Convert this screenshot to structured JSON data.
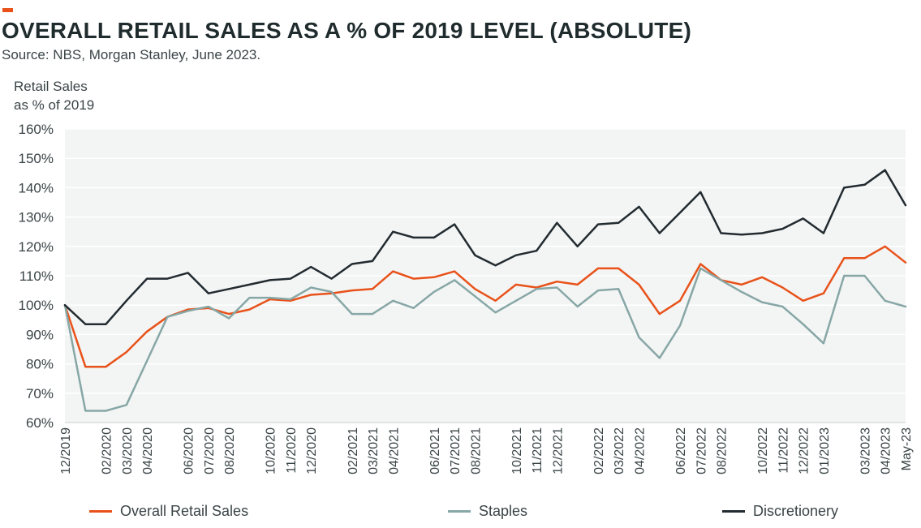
{
  "title": "OVERALL RETAIL SALES AS A % OF 2019 LEVEL (ABSOLUTE)",
  "subtitle": "Source: NBS, Morgan Stanley, June 2023.",
  "colors": {
    "accent": "#e8521a",
    "overall": "#e8521a",
    "staples": "#87a7a6",
    "discretionery": "#222b30",
    "plot_bg": "#f3f5f4",
    "grid": "#ffffff"
  },
  "chart_data": {
    "type": "line",
    "ylabel_line1": "Retail Sales",
    "ylabel_line2": "as % of 2019",
    "ylim": [
      60,
      160
    ],
    "yticks": [
      "60%",
      "70%",
      "80%",
      "90%",
      "100%",
      "110%",
      "120%",
      "130%",
      "140%",
      "150%",
      "160%"
    ],
    "grid": true,
    "legend_position": "bottom",
    "xticks": [
      "12/2019",
      "02/2020",
      "03/2020",
      "04/2020",
      "06/2020",
      "07/2020",
      "08/2020",
      "10/2020",
      "11/2020",
      "12/2020",
      "02/2021",
      "03/2021",
      "04/2021",
      "06/2021",
      "07/2021",
      "08/2021",
      "10/2021",
      "11/2021",
      "12/2021",
      "02/2022",
      "03/2022",
      "04/2022",
      "06/2022",
      "07/2022",
      "08/2022",
      "10/2022",
      "11/2022",
      "12/2022",
      "01/2023",
      "03/2023",
      "04/2023",
      "May-23"
    ],
    "x": [
      "12/2019",
      "01/2020",
      "02/2020",
      "03/2020",
      "04/2020",
      "05/2020",
      "06/2020",
      "07/2020",
      "08/2020",
      "09/2020",
      "10/2020",
      "11/2020",
      "12/2020",
      "01/2021",
      "02/2021",
      "03/2021",
      "04/2021",
      "05/2021",
      "06/2021",
      "07/2021",
      "08/2021",
      "09/2021",
      "10/2021",
      "11/2021",
      "12/2021",
      "01/2022",
      "02/2022",
      "03/2022",
      "04/2022",
      "05/2022",
      "06/2022",
      "07/2022",
      "08/2022",
      "09/2022",
      "10/2022",
      "11/2022",
      "12/2022",
      "01/2023",
      "02/2023",
      "03/2023",
      "04/2023",
      "May-23"
    ],
    "series": [
      {
        "name": "Overall Retail Sales",
        "color": "#e8521a",
        "values": [
          100,
          79,
          79,
          84,
          91,
          96,
          98.5,
          99,
          97,
          98.5,
          102,
          101.5,
          103.5,
          104,
          105,
          105.5,
          111.5,
          109,
          109.5,
          111.5,
          105.5,
          101.5,
          107,
          106,
          108,
          107,
          112.5,
          112.5,
          107,
          97,
          101.5,
          114,
          108.5,
          107,
          109.5,
          106,
          101.5,
          104,
          116,
          116,
          120,
          114.5
        ]
      },
      {
        "name": "Staples",
        "color": "#87a7a6",
        "values": [
          100,
          64,
          64,
          66,
          81,
          96,
          98,
          99.5,
          95.5,
          102.5,
          102.5,
          102,
          106,
          104.5,
          97,
          97,
          101.5,
          99,
          104.5,
          108.5,
          103,
          97.5,
          101.5,
          105.5,
          106,
          99.5,
          105,
          105.5,
          89,
          82,
          93,
          112.5,
          108.5,
          104.5,
          101,
          99.5,
          93.5,
          87,
          110,
          110,
          101.5,
          99.5
        ]
      },
      {
        "name": "Discretionery",
        "color": "#222b30",
        "values": [
          100,
          93.5,
          93.5,
          101.5,
          109,
          109,
          111,
          104,
          105.5,
          107,
          108.5,
          109,
          113,
          109,
          114,
          115,
          125,
          123,
          123,
          127.5,
          117,
          113.5,
          117,
          118.5,
          128,
          120,
          127.5,
          128,
          133.5,
          124.5,
          131.5,
          138.5,
          124.5,
          124,
          124.5,
          126,
          129.5,
          124.5,
          140,
          141,
          146,
          134
        ]
      }
    ]
  },
  "legend": [
    {
      "label": "Overall Retail Sales",
      "color": "#e8521a"
    },
    {
      "label": "Staples",
      "color": "#87a7a6"
    },
    {
      "label": "Discretionery",
      "color": "#222b30"
    }
  ]
}
